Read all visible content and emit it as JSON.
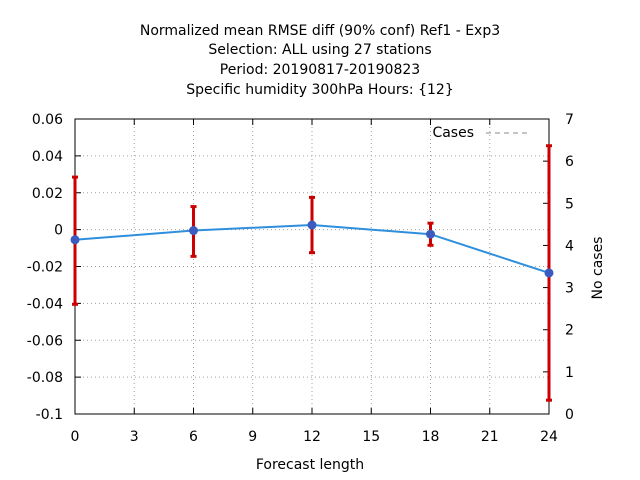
{
  "chart_data": {
    "type": "line",
    "title": [
      "Normalized mean RMSE diff (90% conf) Ref1 - Exp3",
      "Selection: ALL using    27 stations",
      "Period: 20190817-20190823",
      "Specific humidity 300hPa   Hours: {12}"
    ],
    "xlabel": "Forecast length",
    "ylabel_right": "No cases",
    "xlim": [
      0,
      24
    ],
    "ylim": [
      -0.1,
      0.06
    ],
    "y2lim": [
      0,
      7
    ],
    "x_ticks": [
      0,
      3,
      6,
      9,
      12,
      15,
      18,
      21,
      24
    ],
    "x_tick_labels": [
      "0",
      "3",
      "6",
      "9",
      "12",
      "15",
      "18",
      "21",
      "24"
    ],
    "y_ticks": [
      -0.1,
      -0.08,
      -0.06,
      -0.04,
      -0.02,
      0,
      0.02,
      0.04,
      0.06
    ],
    "y_tick_labels": [
      "-0.1",
      "-0.08",
      "-0.06",
      "-0.04",
      "-0.02",
      "0",
      "0.02",
      "0.04",
      "0.06"
    ],
    "y2_ticks": [
      0,
      1,
      2,
      3,
      4,
      5,
      6,
      7
    ],
    "y2_tick_labels": [
      "0",
      "1",
      "2",
      "3",
      "4",
      "5",
      "6",
      "7"
    ],
    "grid": true,
    "legend": {
      "position": "top-right",
      "entries": [
        "Cases"
      ]
    },
    "series": [
      {
        "x": [
          0,
          6,
          12,
          18,
          24
        ],
        "y": [
          -0.0055,
          -0.0005,
          0.0025,
          -0.0025,
          -0.0235
        ],
        "err_low": [
          -0.0405,
          -0.0145,
          -0.0125,
          -0.0085,
          -0.0925
        ],
        "err_high": [
          0.0285,
          0.0125,
          0.0175,
          0.0035,
          0.0455
        ],
        "color": "#2f8fdc",
        "marker_color": "#3b5bbf",
        "errorbar_color": "#cc0000"
      },
      {
        "name": "Cases",
        "axis": "right",
        "x": [
          0,
          24
        ],
        "y": [
          7,
          7
        ],
        "style": "dashed",
        "color": "#888888"
      }
    ]
  }
}
